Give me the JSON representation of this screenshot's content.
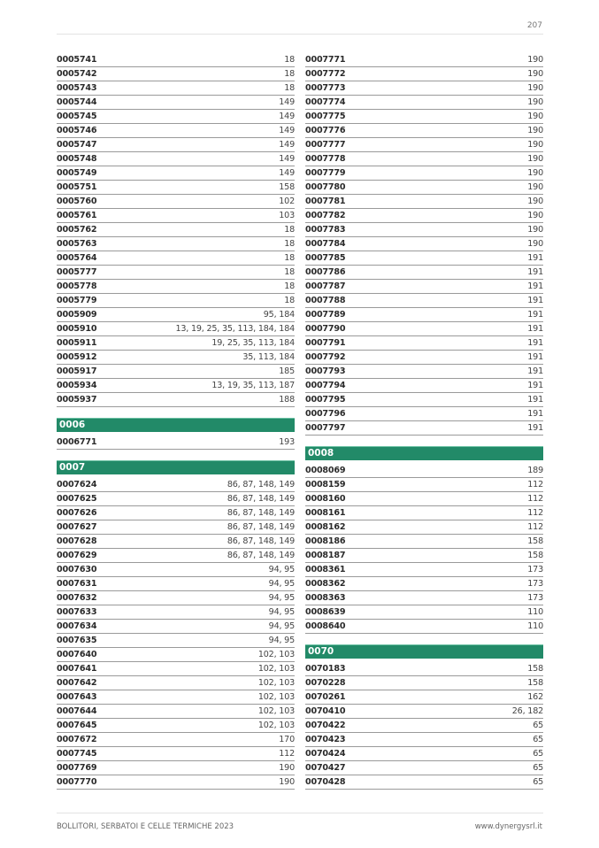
{
  "page_number": "207",
  "footer": {
    "left": "BOLLITORI, SERBATOI E CELLE TERMICHE 2023",
    "right": "www.dynergysrl.it"
  },
  "accent_color": "#228a68",
  "columns": [
    {
      "sections": [
        {
          "header": null,
          "rows": [
            [
              "0005741",
              "18"
            ],
            [
              "0005742",
              "18"
            ],
            [
              "0005743",
              "18"
            ],
            [
              "0005744",
              "149"
            ],
            [
              "0005745",
              "149"
            ],
            [
              "0005746",
              "149"
            ],
            [
              "0005747",
              "149"
            ],
            [
              "0005748",
              "149"
            ],
            [
              "0005749",
              "149"
            ],
            [
              "0005751",
              "158"
            ],
            [
              "0005760",
              "102"
            ],
            [
              "0005761",
              "103"
            ],
            [
              "0005762",
              "18"
            ],
            [
              "0005763",
              "18"
            ],
            [
              "0005764",
              "18"
            ],
            [
              "0005777",
              "18"
            ],
            [
              "0005778",
              "18"
            ],
            [
              "0005779",
              "18"
            ],
            [
              "0005909",
              "95, 184"
            ],
            [
              "0005910",
              "13, 19, 25, 35, 113, 184, 184"
            ],
            [
              "0005911",
              "19, 25, 35, 113, 184"
            ],
            [
              "0005912",
              "35, 113, 184"
            ],
            [
              "0005917",
              "185"
            ],
            [
              "0005934",
              "13, 19, 35, 113, 187"
            ],
            [
              "0005937",
              "188"
            ]
          ]
        },
        {
          "header": "0006",
          "rows": [
            [
              "0006771",
              "193"
            ]
          ]
        },
        {
          "header": "0007",
          "rows": [
            [
              "0007624",
              "86, 87, 148, 149"
            ],
            [
              "0007625",
              "86, 87, 148, 149"
            ],
            [
              "0007626",
              "86, 87, 148, 149"
            ],
            [
              "0007627",
              "86, 87, 148, 149"
            ],
            [
              "0007628",
              "86, 87, 148, 149"
            ],
            [
              "0007629",
              "86, 87, 148, 149"
            ],
            [
              "0007630",
              "94, 95"
            ],
            [
              "0007631",
              "94, 95"
            ],
            [
              "0007632",
              "94, 95"
            ],
            [
              "0007633",
              "94, 95"
            ],
            [
              "0007634",
              "94, 95"
            ],
            [
              "0007635",
              "94, 95"
            ],
            [
              "0007640",
              "102, 103"
            ],
            [
              "0007641",
              "102, 103"
            ],
            [
              "0007642",
              "102, 103"
            ],
            [
              "0007643",
              "102, 103"
            ],
            [
              "0007644",
              "102, 103"
            ],
            [
              "0007645",
              "102, 103"
            ],
            [
              "0007672",
              "170"
            ],
            [
              "0007745",
              "112"
            ],
            [
              "0007769",
              "190"
            ],
            [
              "0007770",
              "190"
            ]
          ]
        }
      ]
    },
    {
      "sections": [
        {
          "header": null,
          "rows": [
            [
              "0007771",
              "190"
            ],
            [
              "0007772",
              "190"
            ],
            [
              "0007773",
              "190"
            ],
            [
              "0007774",
              "190"
            ],
            [
              "0007775",
              "190"
            ],
            [
              "0007776",
              "190"
            ],
            [
              "0007777",
              "190"
            ],
            [
              "0007778",
              "190"
            ],
            [
              "0007779",
              "190"
            ],
            [
              "0007780",
              "190"
            ],
            [
              "0007781",
              "190"
            ],
            [
              "0007782",
              "190"
            ],
            [
              "0007783",
              "190"
            ],
            [
              "0007784",
              "190"
            ],
            [
              "0007785",
              "191"
            ],
            [
              "0007786",
              "191"
            ],
            [
              "0007787",
              "191"
            ],
            [
              "0007788",
              "191"
            ],
            [
              "0007789",
              "191"
            ],
            [
              "0007790",
              "191"
            ],
            [
              "0007791",
              "191"
            ],
            [
              "0007792",
              "191"
            ],
            [
              "0007793",
              "191"
            ],
            [
              "0007794",
              "191"
            ],
            [
              "0007795",
              "191"
            ],
            [
              "0007796",
              "191"
            ],
            [
              "0007797",
              "191"
            ]
          ]
        },
        {
          "header": "0008",
          "rows": [
            [
              "0008069",
              "189"
            ],
            [
              "0008159",
              "112"
            ],
            [
              "0008160",
              "112"
            ],
            [
              "0008161",
              "112"
            ],
            [
              "0008162",
              "112"
            ],
            [
              "0008186",
              "158"
            ],
            [
              "0008187",
              "158"
            ],
            [
              "0008361",
              "173"
            ],
            [
              "0008362",
              "173"
            ],
            [
              "0008363",
              "173"
            ],
            [
              "0008639",
              "110"
            ],
            [
              "0008640",
              "110"
            ]
          ]
        },
        {
          "header": "0070",
          "rows": [
            [
              "0070183",
              "158"
            ],
            [
              "0070228",
              "158"
            ],
            [
              "0070261",
              "162"
            ],
            [
              "0070410",
              "26, 182"
            ],
            [
              "0070422",
              "65"
            ],
            [
              "0070423",
              "65"
            ],
            [
              "0070424",
              "65"
            ],
            [
              "0070427",
              "65"
            ],
            [
              "0070428",
              "65"
            ]
          ]
        }
      ]
    }
  ]
}
